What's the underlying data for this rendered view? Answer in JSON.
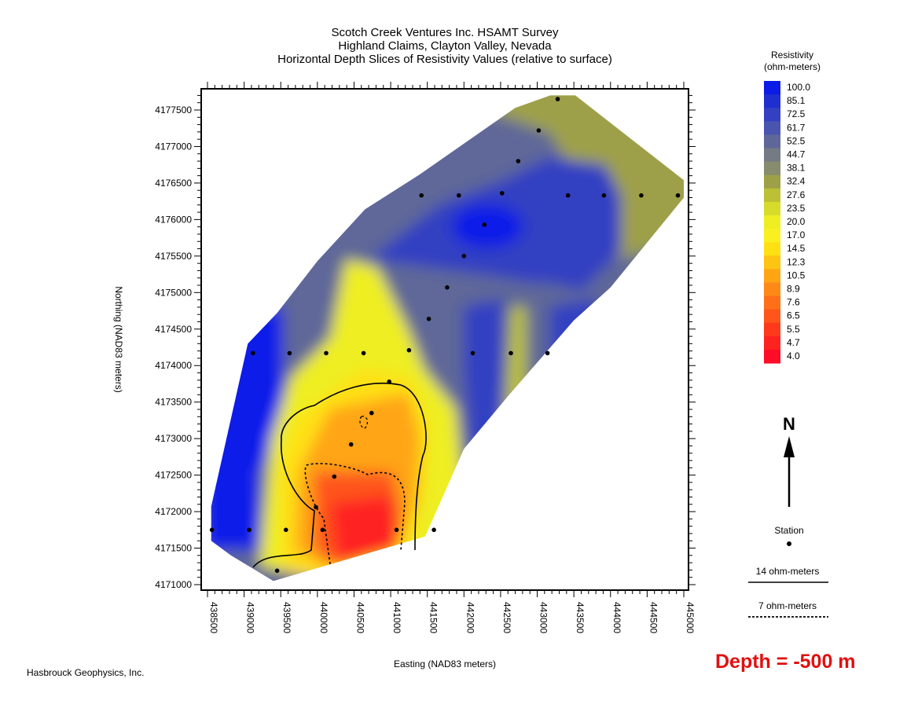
{
  "title": {
    "line1": "Scotch Creek Ventures Inc. HSAMT Survey",
    "line2": "Highland Claims, Clayton Valley, Nevada",
    "line3": "Horizontal Depth Slices of Resistivity Values (relative to surface)"
  },
  "axes": {
    "x_label": "Easting (NAD83 meters)",
    "y_label": "Northing (NAD83 meters)",
    "x_ticks": [
      "438500",
      "439000",
      "439500",
      "440000",
      "440500",
      "441000",
      "441500",
      "442000",
      "442500",
      "443000",
      "443500",
      "444000",
      "444500",
      "445000"
    ],
    "y_ticks": [
      "4177500",
      "4177000",
      "4176500",
      "4176000",
      "4175500",
      "4175000",
      "4174500",
      "4174000",
      "4173500",
      "4173000",
      "4172500",
      "4172000",
      "4171500",
      "4171000"
    ]
  },
  "legend": {
    "title_line1": "Resistivity",
    "title_line2": "(ohm-meters)",
    "values": [
      "100.0",
      "85.1",
      "72.5",
      "61.7",
      "52.5",
      "44.7",
      "38.1",
      "32.4",
      "27.6",
      "23.5",
      "20.0",
      "17.0",
      "14.5",
      "12.3",
      "10.5",
      "8.9",
      "7.6",
      "6.5",
      "5.5",
      "4.7",
      "4.0"
    ],
    "colors": [
      "#0b1be8",
      "#1f2fcf",
      "#3340c2",
      "#4a55b0",
      "#5f6798",
      "#747b84",
      "#878c6e",
      "#9ea048",
      "#bcc035",
      "#d7dc2a",
      "#eeee22",
      "#f8f020",
      "#ffe013",
      "#ffc412",
      "#ffa514",
      "#ff8917",
      "#ff6f18",
      "#ff551a",
      "#ff3a1c",
      "#ff2320",
      "#ff0c26"
    ]
  },
  "north": {
    "label": "N",
    "icon": "north-arrow-icon"
  },
  "station_legend": {
    "label": "Station",
    "icon": "station-dot-icon"
  },
  "contour_legend": {
    "solid": "14 ohm-meters",
    "dashed": "7 ohm-meters"
  },
  "depth_label": "Depth = -500 m",
  "credit": "Hasbrouck Geophysics, Inc.",
  "stations": [
    {
      "e": 443280,
      "n": 4177650
    },
    {
      "e": 443020,
      "n": 4177220
    },
    {
      "e": 442740,
      "n": 4176800
    },
    {
      "e": 441420,
      "n": 4176330
    },
    {
      "e": 441930,
      "n": 4176330
    },
    {
      "e": 442520,
      "n": 4176360
    },
    {
      "e": 443420,
      "n": 4176330
    },
    {
      "e": 443910,
      "n": 4176330
    },
    {
      "e": 444420,
      "n": 4176330
    },
    {
      "e": 444920,
      "n": 4176330
    },
    {
      "e": 442280,
      "n": 4175930
    },
    {
      "e": 442000,
      "n": 4175500
    },
    {
      "e": 441770,
      "n": 4175070
    },
    {
      "e": 441520,
      "n": 4174640
    },
    {
      "e": 439120,
      "n": 4174170
    },
    {
      "e": 439620,
      "n": 4174170
    },
    {
      "e": 440120,
      "n": 4174170
    },
    {
      "e": 440630,
      "n": 4174170
    },
    {
      "e": 441250,
      "n": 4174210
    },
    {
      "e": 442120,
      "n": 4174170
    },
    {
      "e": 442640,
      "n": 4174170
    },
    {
      "e": 443140,
      "n": 4174170
    },
    {
      "e": 440980,
      "n": 4173780
    },
    {
      "e": 440740,
      "n": 4173350
    },
    {
      "e": 440460,
      "n": 4172920
    },
    {
      "e": 440230,
      "n": 4172480
    },
    {
      "e": 439980,
      "n": 4172060
    },
    {
      "e": 438560,
      "n": 4171750
    },
    {
      "e": 439070,
      "n": 4171750
    },
    {
      "e": 439570,
      "n": 4171750
    },
    {
      "e": 440070,
      "n": 4171750
    },
    {
      "e": 441080,
      "n": 4171750
    },
    {
      "e": 441590,
      "n": 4171750
    },
    {
      "e": 439450,
      "n": 4171190
    }
  ]
}
